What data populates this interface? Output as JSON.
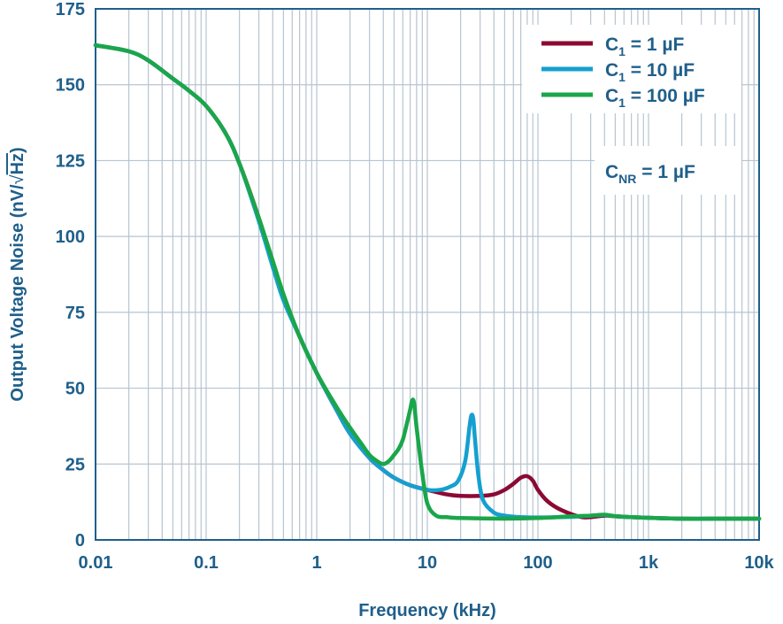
{
  "chart_data": {
    "type": "line",
    "xscale": "log",
    "xlabel": "Frequency (kHz)",
    "ylabel_main": "Output Voltage Noise (nV/",
    "ylabel_unit": "Hz",
    "ylabel_tail": ")",
    "xlim": [
      0.01,
      10000
    ],
    "ylim": [
      0,
      175
    ],
    "xticks": [
      {
        "value": 0.01,
        "label": "0.01"
      },
      {
        "value": 0.1,
        "label": "0.1"
      },
      {
        "value": 1,
        "label": "1"
      },
      {
        "value": 10,
        "label": "10"
      },
      {
        "value": 100,
        "label": "100"
      },
      {
        "value": 1000,
        "label": "1k"
      },
      {
        "value": 10000,
        "label": "10k"
      }
    ],
    "yticks": [
      {
        "value": 0,
        "label": "0"
      },
      {
        "value": 25,
        "label": "25"
      },
      {
        "value": 50,
        "label": "50"
      },
      {
        "value": 75,
        "label": "75"
      },
      {
        "value": 100,
        "label": "100"
      },
      {
        "value": 125,
        "label": "125"
      },
      {
        "value": 150,
        "label": "150"
      },
      {
        "value": 175,
        "label": "175"
      }
    ],
    "grid": true,
    "legend_position": "top-right",
    "annotation": {
      "main": "C",
      "sub": "NR",
      "tail": " = 1 µF"
    },
    "series": [
      {
        "name_main": "C",
        "name_sub": "1",
        "name_tail": " = 1 µF",
        "color": "#8b0a33",
        "points": [
          [
            0.01,
            163
          ],
          [
            0.02,
            161
          ],
          [
            0.03,
            158
          ],
          [
            0.05,
            152
          ],
          [
            0.07,
            148
          ],
          [
            0.1,
            143
          ],
          [
            0.15,
            134
          ],
          [
            0.2,
            124
          ],
          [
            0.3,
            106
          ],
          [
            0.4,
            91
          ],
          [
            0.5,
            80
          ],
          [
            0.7,
            67
          ],
          [
            1,
            55
          ],
          [
            1.5,
            43
          ],
          [
            2,
            35
          ],
          [
            3,
            27
          ],
          [
            4,
            23
          ],
          [
            5,
            20.5
          ],
          [
            7,
            18
          ],
          [
            10,
            16.5
          ],
          [
            15,
            15
          ],
          [
            20,
            14.5
          ],
          [
            30,
            14.5
          ],
          [
            40,
            15
          ],
          [
            50,
            16.5
          ],
          [
            60,
            18.5
          ],
          [
            70,
            20.5
          ],
          [
            80,
            21
          ],
          [
            90,
            19.5
          ],
          [
            100,
            16.5
          ],
          [
            120,
            13
          ],
          [
            150,
            10.5
          ],
          [
            200,
            8.5
          ],
          [
            250,
            7.5
          ],
          [
            300,
            7.5
          ],
          [
            400,
            8
          ],
          [
            500,
            7.8
          ],
          [
            700,
            7.5
          ],
          [
            1000,
            7.3
          ],
          [
            2000,
            7
          ],
          [
            5000,
            7
          ],
          [
            10000,
            7
          ]
        ]
      },
      {
        "name_main": "C",
        "name_sub": "1",
        "name_tail": " = 10 µF",
        "color": "#14a0d0",
        "points": [
          [
            0.01,
            163
          ],
          [
            0.02,
            161
          ],
          [
            0.03,
            158
          ],
          [
            0.05,
            152
          ],
          [
            0.07,
            148
          ],
          [
            0.1,
            143
          ],
          [
            0.15,
            134
          ],
          [
            0.2,
            124
          ],
          [
            0.3,
            105
          ],
          [
            0.4,
            90
          ],
          [
            0.5,
            79
          ],
          [
            0.7,
            67
          ],
          [
            1,
            55
          ],
          [
            1.5,
            43
          ],
          [
            2,
            35
          ],
          [
            3,
            27
          ],
          [
            4,
            23
          ],
          [
            5,
            20.5
          ],
          [
            7,
            18
          ],
          [
            10,
            16.5
          ],
          [
            13,
            16.5
          ],
          [
            16,
            17.5
          ],
          [
            19,
            19.5
          ],
          [
            22,
            26
          ],
          [
            24,
            37
          ],
          [
            25,
            41
          ],
          [
            26,
            40
          ],
          [
            27,
            33
          ],
          [
            29,
            21
          ],
          [
            32,
            13
          ],
          [
            40,
            9
          ],
          [
            50,
            8
          ],
          [
            70,
            7.5
          ],
          [
            100,
            7.4
          ],
          [
            200,
            7.6
          ],
          [
            300,
            8
          ],
          [
            400,
            8.2
          ],
          [
            500,
            7.8
          ],
          [
            700,
            7.5
          ],
          [
            1000,
            7.3
          ],
          [
            2000,
            7
          ],
          [
            5000,
            7
          ],
          [
            10000,
            7
          ]
        ]
      },
      {
        "name_main": "C",
        "name_sub": "1",
        "name_tail": " = 100 µF",
        "color": "#1aa64a",
        "points": [
          [
            0.01,
            163
          ],
          [
            0.02,
            161
          ],
          [
            0.03,
            158
          ],
          [
            0.05,
            152
          ],
          [
            0.07,
            148
          ],
          [
            0.1,
            143
          ],
          [
            0.15,
            134
          ],
          [
            0.2,
            124
          ],
          [
            0.3,
            106
          ],
          [
            0.4,
            92
          ],
          [
            0.5,
            81
          ],
          [
            0.7,
            67
          ],
          [
            1,
            55
          ],
          [
            1.5,
            44
          ],
          [
            2,
            37
          ],
          [
            2.5,
            32
          ],
          [
            3,
            28
          ],
          [
            3.5,
            26
          ],
          [
            4,
            25
          ],
          [
            4.5,
            26
          ],
          [
            5,
            28
          ],
          [
            5.5,
            30
          ],
          [
            6,
            33
          ],
          [
            6.5,
            38
          ],
          [
            7,
            43
          ],
          [
            7.3,
            46
          ],
          [
            7.6,
            45
          ],
          [
            8,
            37
          ],
          [
            9,
            22
          ],
          [
            10,
            12
          ],
          [
            12,
            8
          ],
          [
            15,
            7.5
          ],
          [
            20,
            7.2
          ],
          [
            50,
            7
          ],
          [
            100,
            7.2
          ],
          [
            200,
            7.8
          ],
          [
            300,
            8
          ],
          [
            400,
            8.3
          ],
          [
            500,
            7.8
          ],
          [
            700,
            7.5
          ],
          [
            1000,
            7.3
          ],
          [
            2000,
            7
          ],
          [
            5000,
            7
          ],
          [
            10000,
            7
          ]
        ]
      }
    ]
  }
}
